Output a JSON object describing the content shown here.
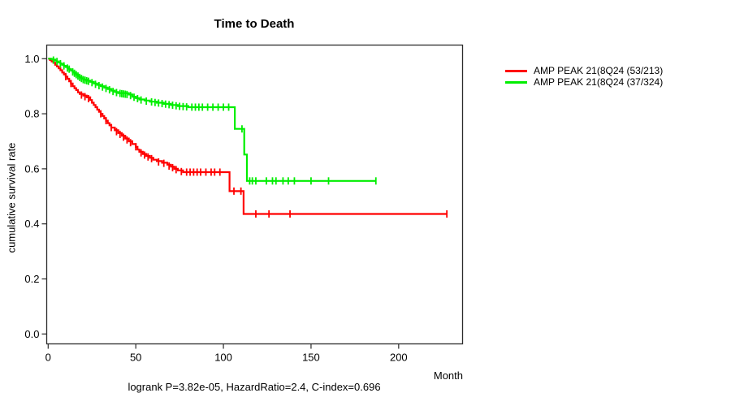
{
  "window": {
    "background": "#ffffff"
  },
  "chart_data": {
    "type": "line",
    "subtype": "kaplan-meier-step",
    "title": "Time to Death",
    "xlabel": "Month",
    "ylabel": "cumulative survival rate",
    "annotation": "logrank P=3.82e-05, HazardRatio=2.4, C-index=0.696",
    "xlim": [
      0,
      236
    ],
    "ylim": [
      0.0,
      1.0
    ],
    "x_ticks": [
      0,
      50,
      100,
      150,
      200
    ],
    "y_ticks": [
      "0.0",
      "0.2",
      "0.4",
      "0.6",
      "0.8",
      "1.0"
    ],
    "grid": false,
    "legend_position": "right-outside",
    "axis_color": "#2b2b2b",
    "series": [
      {
        "name": "AMP PEAK 21(8Q24 (53/213)",
        "color": "#ff0000",
        "steps": [
          [
            0,
            1.0
          ],
          [
            1,
            0.995
          ],
          [
            2,
            0.99
          ],
          [
            3,
            0.985
          ],
          [
            4,
            0.978
          ],
          [
            5,
            0.972
          ],
          [
            6,
            0.965
          ],
          [
            7,
            0.958
          ],
          [
            8,
            0.95
          ],
          [
            9,
            0.943
          ],
          [
            10,
            0.935
          ],
          [
            11,
            0.927
          ],
          [
            12,
            0.918
          ],
          [
            13,
            0.91
          ],
          [
            14,
            0.9
          ],
          [
            15,
            0.893
          ],
          [
            16,
            0.886
          ],
          [
            17,
            0.878
          ],
          [
            18,
            0.872
          ],
          [
            20,
            0.866
          ],
          [
            22,
            0.86
          ],
          [
            24,
            0.85
          ],
          [
            25,
            0.84
          ],
          [
            26,
            0.832
          ],
          [
            27,
            0.824
          ],
          [
            28,
            0.815
          ],
          [
            29,
            0.807
          ],
          [
            30,
            0.8
          ],
          [
            31,
            0.792
          ],
          [
            32,
            0.783
          ],
          [
            33,
            0.775
          ],
          [
            34,
            0.766
          ],
          [
            35,
            0.758
          ],
          [
            36,
            0.75
          ],
          [
            38,
            0.74
          ],
          [
            40,
            0.73
          ],
          [
            42,
            0.72
          ],
          [
            44,
            0.71
          ],
          [
            46,
            0.7
          ],
          [
            48,
            0.69
          ],
          [
            50,
            0.68
          ],
          [
            51,
            0.67
          ],
          [
            52,
            0.662
          ],
          [
            54,
            0.654
          ],
          [
            56,
            0.647
          ],
          [
            58,
            0.64
          ],
          [
            60,
            0.633
          ],
          [
            62,
            0.628
          ],
          [
            65,
            0.622
          ],
          [
            68,
            0.615
          ],
          [
            70,
            0.608
          ],
          [
            72,
            0.6
          ],
          [
            74,
            0.594
          ],
          [
            77,
            0.588
          ],
          [
            103.5,
            0.519
          ],
          [
            111.5,
            0.436
          ],
          [
            227.5,
            0.436
          ]
        ],
        "censors": [
          [
            10,
            0.935
          ],
          [
            13,
            0.91
          ],
          [
            19,
            0.868
          ],
          [
            21,
            0.862
          ],
          [
            23,
            0.855
          ],
          [
            30,
            0.8
          ],
          [
            33,
            0.775
          ],
          [
            36,
            0.75
          ],
          [
            39,
            0.735
          ],
          [
            41,
            0.725
          ],
          [
            43,
            0.715
          ],
          [
            45,
            0.705
          ],
          [
            47,
            0.695
          ],
          [
            50,
            0.68
          ],
          [
            53,
            0.658
          ],
          [
            55,
            0.65
          ],
          [
            57,
            0.643
          ],
          [
            59,
            0.637
          ],
          [
            63,
            0.625
          ],
          [
            66,
            0.62
          ],
          [
            69,
            0.61
          ],
          [
            71,
            0.604
          ],
          [
            73,
            0.597
          ],
          [
            76,
            0.59
          ],
          [
            79,
            0.588
          ],
          [
            81,
            0.588
          ],
          [
            83,
            0.588
          ],
          [
            85,
            0.588
          ],
          [
            87,
            0.588
          ],
          [
            90,
            0.588
          ],
          [
            93,
            0.588
          ],
          [
            95,
            0.588
          ],
          [
            98,
            0.588
          ],
          [
            106,
            0.519
          ],
          [
            110,
            0.519
          ],
          [
            118.5,
            0.436
          ],
          [
            126,
            0.436
          ],
          [
            138,
            0.436
          ],
          [
            227.5,
            0.436
          ]
        ],
        "events_total": "53/213",
        "final_value": 0.436
      },
      {
        "name": "AMP PEAK 21(8Q24 (37/324)",
        "color": "#00ee00",
        "steps": [
          [
            0,
            1.0
          ],
          [
            2,
            0.997
          ],
          [
            4,
            0.993
          ],
          [
            5,
            0.99
          ],
          [
            6,
            0.986
          ],
          [
            7,
            0.982
          ],
          [
            8,
            0.978
          ],
          [
            9,
            0.974
          ],
          [
            10,
            0.97
          ],
          [
            11,
            0.966
          ],
          [
            12,
            0.962
          ],
          [
            13,
            0.957
          ],
          [
            14,
            0.952
          ],
          [
            15,
            0.947
          ],
          [
            16,
            0.942
          ],
          [
            17,
            0.937
          ],
          [
            18,
            0.932
          ],
          [
            19,
            0.928
          ],
          [
            20,
            0.924
          ],
          [
            22,
            0.92
          ],
          [
            24,
            0.916
          ],
          [
            26,
            0.91
          ],
          [
            28,
            0.905
          ],
          [
            30,
            0.9
          ],
          [
            32,
            0.895
          ],
          [
            34,
            0.89
          ],
          [
            36,
            0.884
          ],
          [
            38,
            0.879
          ],
          [
            40,
            0.875
          ],
          [
            46,
            0.87
          ],
          [
            48,
            0.862
          ],
          [
            50,
            0.857
          ],
          [
            52,
            0.852
          ],
          [
            55,
            0.848
          ],
          [
            58,
            0.844
          ],
          [
            62,
            0.84
          ],
          [
            66,
            0.836
          ],
          [
            70,
            0.832
          ],
          [
            74,
            0.828
          ],
          [
            80,
            0.824
          ],
          [
            106.5,
            0.745
          ],
          [
            111.9,
            0.652
          ],
          [
            113.4,
            0.556
          ],
          [
            187,
            0.556
          ]
        ],
        "censors": [
          [
            3,
            0.995
          ],
          [
            5,
            0.99
          ],
          [
            7,
            0.982
          ],
          [
            9,
            0.974
          ],
          [
            11,
            0.966
          ],
          [
            12,
            0.962
          ],
          [
            14,
            0.952
          ],
          [
            15,
            0.947
          ],
          [
            16,
            0.942
          ],
          [
            17,
            0.937
          ],
          [
            18,
            0.932
          ],
          [
            19,
            0.928
          ],
          [
            20,
            0.924
          ],
          [
            21,
            0.922
          ],
          [
            22,
            0.92
          ],
          [
            23,
            0.918
          ],
          [
            25,
            0.913
          ],
          [
            27,
            0.907
          ],
          [
            29,
            0.902
          ],
          [
            31,
            0.897
          ],
          [
            33,
            0.892
          ],
          [
            35,
            0.887
          ],
          [
            37,
            0.881
          ],
          [
            39,
            0.877
          ],
          [
            41,
            0.874
          ],
          [
            42,
            0.873
          ],
          [
            43,
            0.872
          ],
          [
            44,
            0.871
          ],
          [
            45,
            0.87
          ],
          [
            47,
            0.866
          ],
          [
            49,
            0.86
          ],
          [
            51,
            0.855
          ],
          [
            53,
            0.85
          ],
          [
            56,
            0.846
          ],
          [
            59,
            0.843
          ],
          [
            61,
            0.841
          ],
          [
            63,
            0.839
          ],
          [
            65,
            0.837
          ],
          [
            67,
            0.835
          ],
          [
            69,
            0.833
          ],
          [
            71,
            0.831
          ],
          [
            73,
            0.829
          ],
          [
            75,
            0.827
          ],
          [
            77,
            0.826
          ],
          [
            79,
            0.825
          ],
          [
            82,
            0.824
          ],
          [
            84,
            0.824
          ],
          [
            86,
            0.824
          ],
          [
            88,
            0.824
          ],
          [
            91,
            0.824
          ],
          [
            94,
            0.824
          ],
          [
            97,
            0.824
          ],
          [
            100,
            0.824
          ],
          [
            103,
            0.824
          ],
          [
            110.6,
            0.745
          ],
          [
            115,
            0.556
          ],
          [
            116.5,
            0.556
          ],
          [
            118.5,
            0.556
          ],
          [
            124.5,
            0.556
          ],
          [
            128,
            0.556
          ],
          [
            130,
            0.556
          ],
          [
            134,
            0.556
          ],
          [
            137,
            0.556
          ],
          [
            140.5,
            0.556
          ],
          [
            150,
            0.556
          ],
          [
            160,
            0.556
          ],
          [
            187,
            0.556
          ]
        ],
        "events_total": "37/324",
        "final_value": 0.556
      }
    ]
  },
  "legend": {
    "items": [
      {
        "label": "AMP PEAK 21(8Q24 (53/213)",
        "color": "#ff0000"
      },
      {
        "label": "AMP PEAK 21(8Q24 (37/324)",
        "color": "#00ee00"
      }
    ]
  }
}
